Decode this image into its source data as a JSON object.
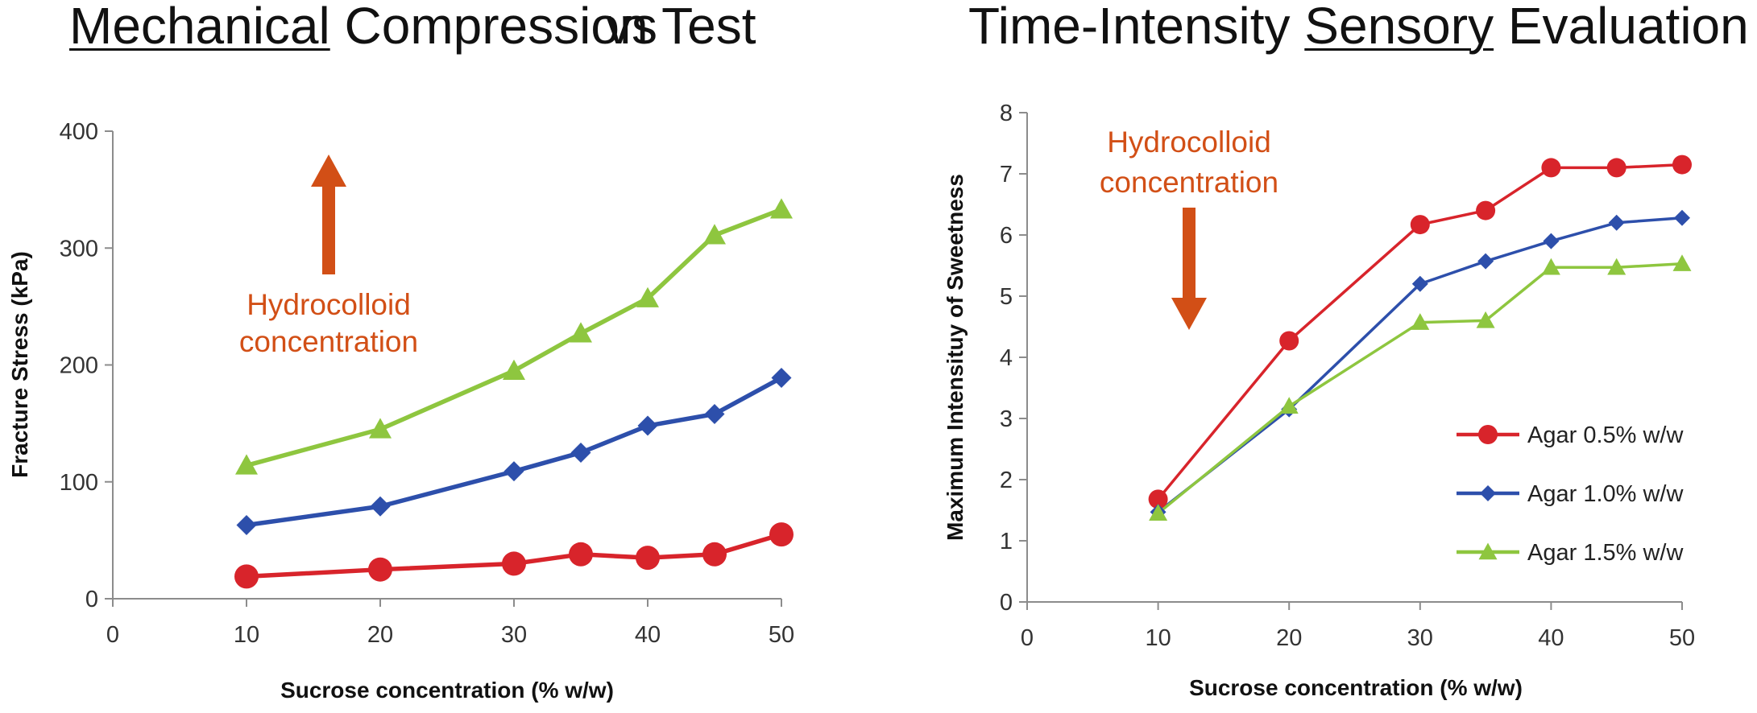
{
  "header": {
    "left_title_underlined": "Mechanical",
    "left_title_rest": " Compression Test",
    "vs": "vs",
    "right_title_start": "Time-Intensity ",
    "right_title_underlined": "Sensory",
    "right_title_end": " Evaluation"
  },
  "colors": {
    "red": "#d8242b",
    "blue": "#2d4fab",
    "green": "#8ec63f",
    "annotation": "#d24f16",
    "axis": "#8c8c8c"
  },
  "chart_data": [
    {
      "type": "line",
      "xlabel": "Sucrose concentration (% w/w)",
      "ylabel": "Fracture Stress (kPa)",
      "xlim": [
        0,
        50
      ],
      "ylim": [
        0,
        400
      ],
      "xticks": [
        0,
        10,
        20,
        30,
        40,
        50
      ],
      "yticks": [
        0,
        100,
        200,
        300,
        400
      ],
      "grid": false,
      "annotation": {
        "line1": "Hydrocolloid",
        "line2": "concentration",
        "arrow": "up"
      },
      "x": [
        10,
        20,
        30,
        35,
        40,
        45,
        50
      ],
      "series": [
        {
          "name": "Agar 0.5% w/w",
          "color": "red",
          "marker": "circle",
          "values": [
            19,
            25,
            30,
            38,
            35,
            38,
            55
          ]
        },
        {
          "name": "Agar 1.0% w/w",
          "color": "blue",
          "marker": "diamond",
          "values": [
            63,
            79,
            109,
            125,
            148,
            158,
            189
          ]
        },
        {
          "name": "Agar 1.5% w/w",
          "color": "green",
          "marker": "triangle",
          "values": [
            114,
            145,
            195,
            227,
            257,
            311,
            333
          ]
        }
      ]
    },
    {
      "type": "line",
      "xlabel": "Sucrose concentration (% w/w)",
      "ylabel": "Maximum Intensituy of Sweetness",
      "xlim": [
        0,
        50
      ],
      "ylim": [
        0,
        8
      ],
      "xticks": [
        0,
        10,
        20,
        30,
        40,
        50
      ],
      "yticks": [
        0,
        1,
        2,
        3,
        4,
        5,
        6,
        7,
        8
      ],
      "grid": false,
      "legend": "right",
      "annotation": {
        "line1": "Hydrocolloid",
        "line2": "concentration",
        "arrow": "down"
      },
      "x": [
        10,
        20,
        30,
        35,
        40,
        45,
        50
      ],
      "series": [
        {
          "name": "Agar 0.5% w/w",
          "color": "red",
          "marker": "circle",
          "values": [
            1.68,
            4.27,
            6.17,
            6.4,
            7.1,
            7.1,
            7.15
          ]
        },
        {
          "name": "Agar 1.0% w/w",
          "color": "blue",
          "marker": "diamond",
          "values": [
            1.47,
            3.15,
            5.2,
            5.57,
            5.9,
            6.2,
            6.28
          ]
        },
        {
          "name": "Agar 1.5% w/w",
          "color": "green",
          "marker": "triangle",
          "values": [
            1.45,
            3.2,
            4.57,
            4.6,
            5.47,
            5.47,
            5.53
          ]
        }
      ]
    }
  ]
}
